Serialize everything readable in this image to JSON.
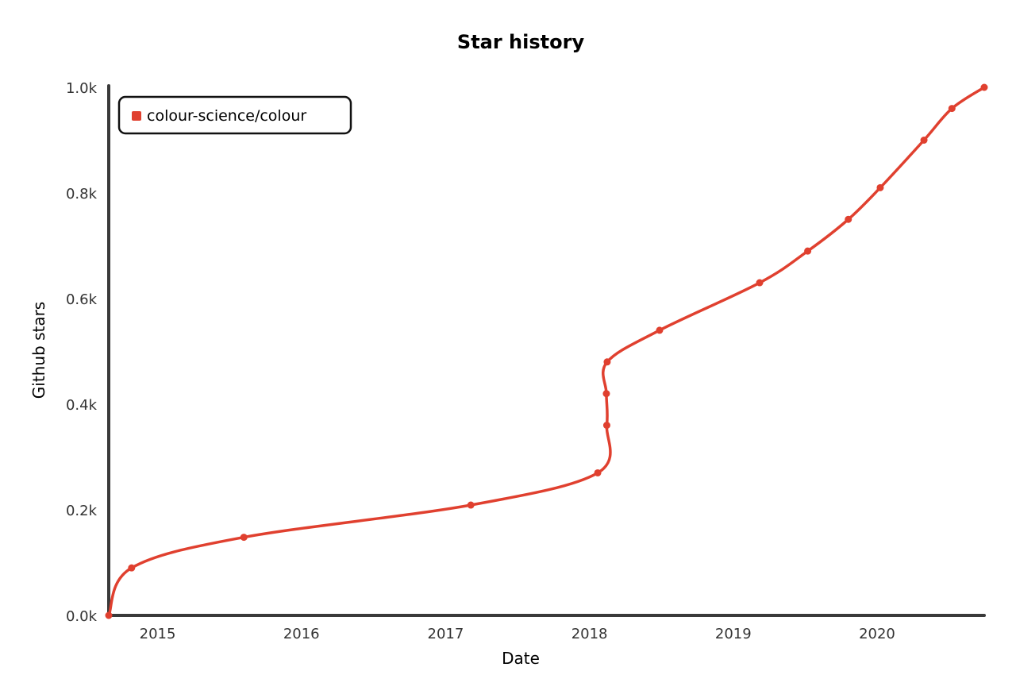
{
  "chart_data": {
    "type": "line",
    "title": "Star history",
    "xlabel": "Date",
    "ylabel": "Github stars",
    "xlim": [
      "2014-08-30",
      "2020-09-29"
    ],
    "ylim": [
      0,
      1000
    ],
    "x_ticks": [
      "2015",
      "2016",
      "2017",
      "2018",
      "2019",
      "2020"
    ],
    "y_ticks": [
      "0.0k",
      "0.2k",
      "0.4k",
      "0.6k",
      "0.8k",
      "1.0k"
    ],
    "grid": false,
    "legend_position": "top-left",
    "colors": {
      "series": "#e0402f",
      "axis": "#3a3a3a"
    },
    "series": [
      {
        "name": "colour-science/colour",
        "color": "#e0402f",
        "points": [
          {
            "x": "2014-08-30",
            "y": 0
          },
          {
            "x": "2014-10-27",
            "y": 90
          },
          {
            "x": "2015-08-08",
            "y": 148
          },
          {
            "x": "2017-03-06",
            "y": 209
          },
          {
            "x": "2018-01-22",
            "y": 270
          },
          {
            "x": "2018-02-14",
            "y": 360
          },
          {
            "x": "2018-02-13",
            "y": 420
          },
          {
            "x": "2018-02-15",
            "y": 480
          },
          {
            "x": "2018-06-28",
            "y": 540
          },
          {
            "x": "2019-03-09",
            "y": 630
          },
          {
            "x": "2019-07-09",
            "y": 690
          },
          {
            "x": "2019-10-20",
            "y": 750
          },
          {
            "x": "2020-01-09",
            "y": 810
          },
          {
            "x": "2020-04-29",
            "y": 900
          },
          {
            "x": "2020-07-09",
            "y": 960
          },
          {
            "x": "2020-09-29",
            "y": 1000
          }
        ]
      }
    ]
  }
}
